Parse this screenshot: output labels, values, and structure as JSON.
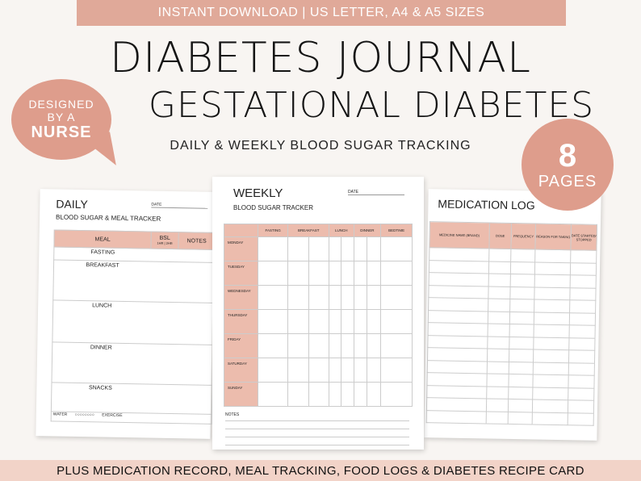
{
  "header": {
    "banner": "INSTANT DOWNLOAD |  US LETTER, A4 & A5 SIZES",
    "title_line1": "DIABETES JOURNAL",
    "title_line2": "GESTATIONAL DIABETES",
    "subtitle": "DAILY & WEEKLY BLOOD SUGAR TRACKING"
  },
  "bubble": {
    "line1": "DESIGNED",
    "line2": "BY A",
    "line3": "NURSE"
  },
  "pages_badge": {
    "number": "8",
    "label": "PAGES"
  },
  "daily": {
    "title": "DAILY",
    "subtitle": "BLOOD SUGAR & MEAL TRACKER",
    "date_label": "DATE",
    "columns": [
      "MEAL",
      "BSL",
      "NOTES"
    ],
    "bsl_sub": "1HR | 2HR",
    "rows": [
      "FASTING",
      "BREAKFAST",
      "LUNCH",
      "DINNER",
      "SNACKS"
    ],
    "water_label": "WATER",
    "exercise_label": "EXERCISE"
  },
  "weekly": {
    "title": "WEEKLY",
    "subtitle": "BLOOD SUGAR TRACKER",
    "date_label": "DATE",
    "columns": [
      "FASTING",
      "BREAKFAST",
      "LUNCH",
      "DINNER",
      "BEDTIME"
    ],
    "days": [
      "MONDAY",
      "TUESDAY",
      "WEDNESDAY",
      "THURSDAY",
      "FRIDAY",
      "SATURDAY",
      "SUNDAY"
    ],
    "notes_label": "NOTES"
  },
  "medication": {
    "title": "MEDICATION LOG",
    "columns": [
      "MEDICINE NAME (BRAND)",
      "DOSE",
      "FREQUENCY",
      "REASON FOR TAKING",
      "DATE STARTED/ STOPPED"
    ]
  },
  "footer": {
    "banner": "PLUS MEDICATION RECORD, MEAL TRACKING, FOOD LOGS & DIABETES RECIPE CARD"
  }
}
